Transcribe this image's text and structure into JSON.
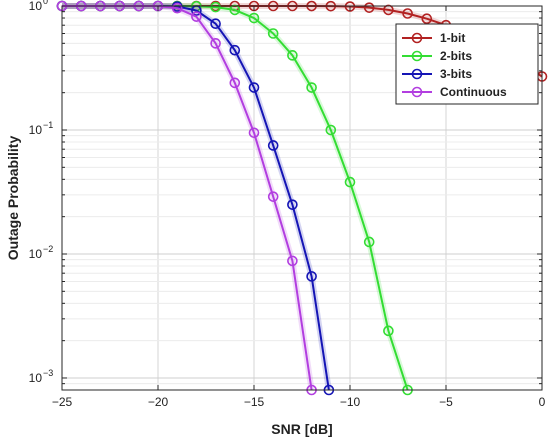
{
  "chart_data": {
    "type": "line",
    "xlabel": "SNR [dB]",
    "ylabel": "Outage Probability",
    "xlim": [
      -25,
      0
    ],
    "ylim": [
      0.0008,
      1
    ],
    "yscale": "log",
    "grid": true,
    "legend_position": "top-right",
    "x_ticks": [
      -25,
      -20,
      -15,
      -10,
      -5,
      0
    ],
    "x_tick_labels": [
      "−25",
      "−20",
      "−15",
      "−10",
      "−5",
      "0"
    ],
    "y_ticks": [
      {
        "value": 1,
        "base": "10",
        "exp": "0"
      },
      {
        "value": 0.1,
        "base": "10",
        "exp": "−1"
      },
      {
        "value": 0.01,
        "base": "10",
        "exp": "−2"
      },
      {
        "value": 0.001,
        "base": "10",
        "exp": "−3"
      }
    ],
    "series": [
      {
        "name": "1-bit",
        "color": "#b22222",
        "x": [
          -25,
          -24,
          -23,
          -22,
          -21,
          -20,
          -19,
          -18,
          -17,
          -16,
          -15,
          -14,
          -13,
          -12,
          -11,
          -10,
          -9,
          -8,
          -7,
          -6,
          -5,
          -4,
          -3,
          -2,
          -1,
          0
        ],
        "y": [
          1,
          1,
          1,
          1,
          1,
          1,
          1,
          1,
          1,
          1,
          1,
          1,
          1,
          0.999,
          0.997,
          0.99,
          0.97,
          0.93,
          0.87,
          0.79,
          0.7,
          0.6,
          0.5,
          0.42,
          0.34,
          0.27
        ]
      },
      {
        "name": "2-bits",
        "color": "#33dd33",
        "x": [
          -25,
          -24,
          -23,
          -22,
          -21,
          -20,
          -19,
          -18,
          -17,
          -16,
          -15,
          -14,
          -13,
          -12,
          -11,
          -10,
          -9,
          -8,
          -7
        ],
        "y": [
          1,
          1,
          1,
          1,
          1,
          1,
          1,
          0.995,
          0.98,
          0.93,
          0.8,
          0.6,
          0.4,
          0.22,
          0.1,
          0.038,
          0.0125,
          0.0024,
          0.0008
        ]
      },
      {
        "name": "3-bits",
        "color": "#1515b5",
        "x": [
          -25,
          -24,
          -23,
          -22,
          -21,
          -20,
          -19,
          -18,
          -17,
          -16,
          -15,
          -14,
          -13,
          -12,
          -11.1
        ],
        "y": [
          1,
          1,
          1,
          1,
          1,
          1,
          0.99,
          0.92,
          0.72,
          0.44,
          0.22,
          0.075,
          0.025,
          0.0066,
          0.0008
        ]
      },
      {
        "name": "Continuous",
        "color": "#b23ee0",
        "x": [
          -25,
          -24,
          -23,
          -22,
          -21,
          -20,
          -19,
          -18,
          -17,
          -16,
          -15,
          -14,
          -13,
          -12
        ],
        "y": [
          1,
          1,
          1,
          1,
          1,
          1,
          0.96,
          0.82,
          0.5,
          0.24,
          0.095,
          0.029,
          0.0088,
          0.0008
        ]
      }
    ]
  }
}
